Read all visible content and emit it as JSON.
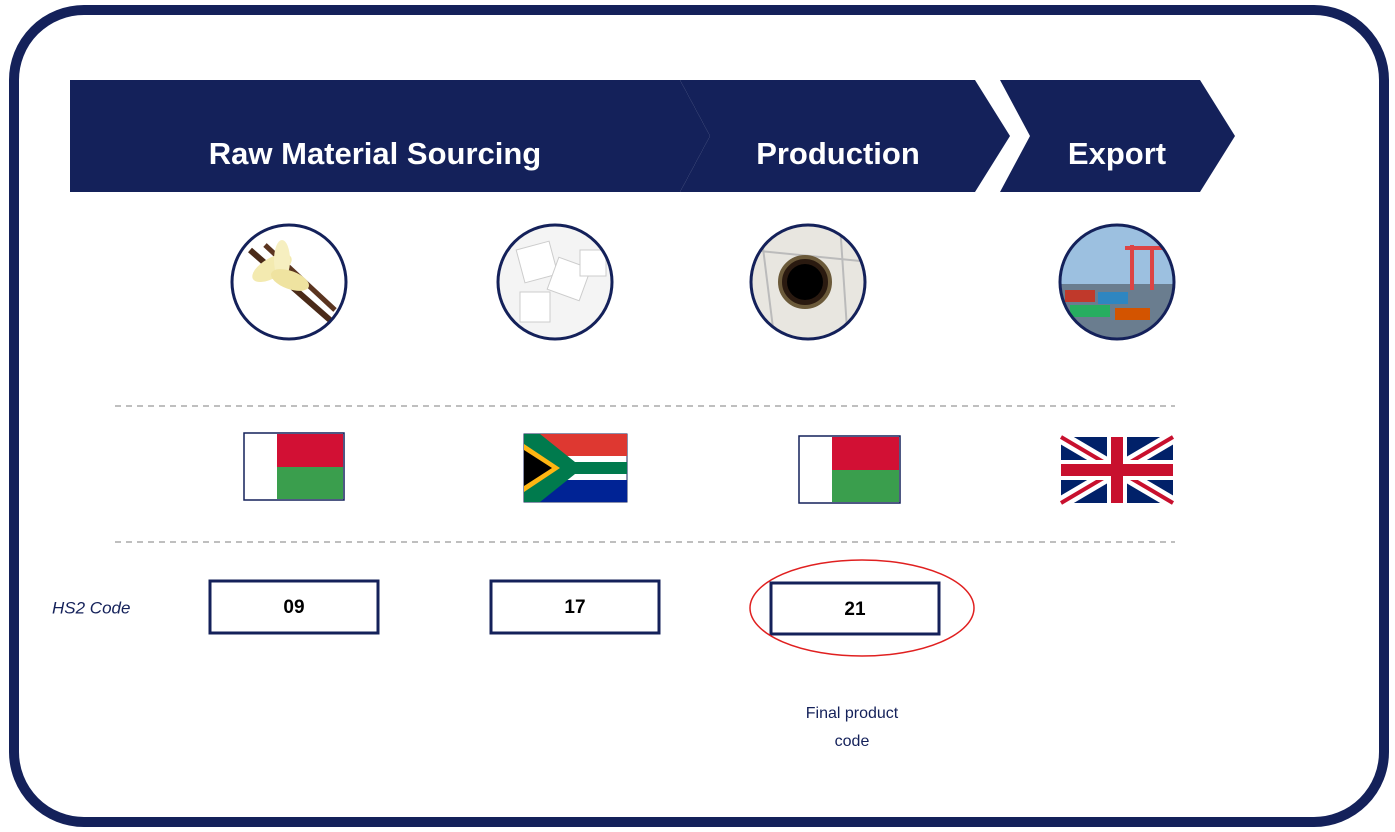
{
  "stages": [
    {
      "label": "Raw Material Sourcing"
    },
    {
      "label": "Production"
    },
    {
      "label": "Export"
    }
  ],
  "hs2_label": "HS2 Code",
  "codes": [
    "09",
    "17",
    "21"
  ],
  "annotation": [
    "Final product",
    "code"
  ]
}
